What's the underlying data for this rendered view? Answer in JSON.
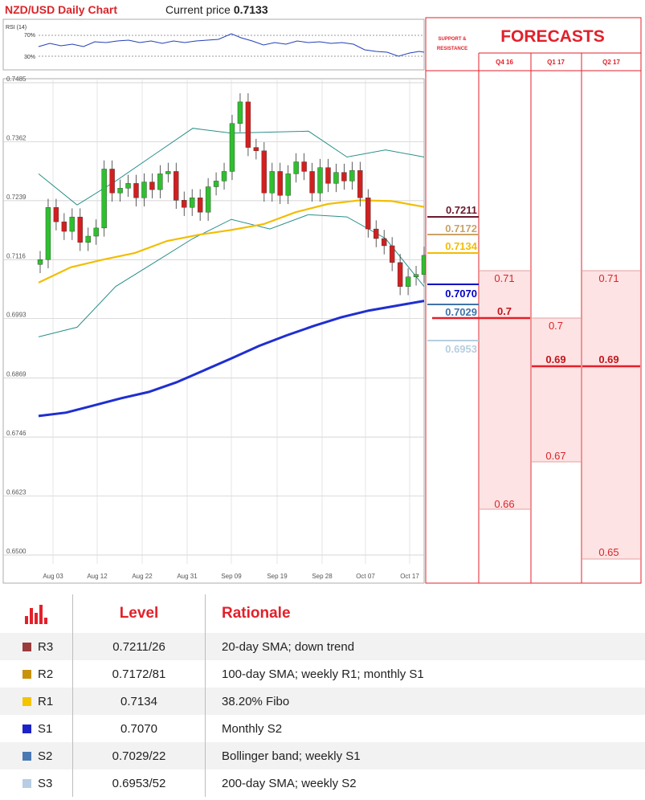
{
  "header": {
    "chart_title": "NZD/USD Daily Chart",
    "price_label": "Current price",
    "price_value": "0.7133"
  },
  "rsi_panel": {
    "label": "RSI (14)",
    "upper": "70%",
    "lower": "30%"
  },
  "forecasts": {
    "title": "FORECASTS",
    "sr_header": "SUPPORT & RESISTANCE",
    "quarters": [
      "Q4 16",
      "Q1 17",
      "Q2 17"
    ],
    "sr_levels": [
      {
        "value": "0.7211",
        "color": "#6b1b2e"
      },
      {
        "value": "0.7172",
        "color": "#c9a36a"
      },
      {
        "value": "0.7134",
        "color": "#f2bd00"
      },
      {
        "value": "0.7070",
        "color": "#0000c8"
      },
      {
        "value": "0.7029",
        "color": "#3f73a8"
      },
      {
        "value": "0.6953",
        "color": "#b6cee0"
      }
    ],
    "columns": [
      {
        "high": "0.71",
        "mid": "0.7",
        "low": "0.66"
      },
      {
        "high": "0.7",
        "mid": "0.69",
        "low": "0.67"
      },
      {
        "high": "0.71",
        "mid": "0.69",
        "low": "0.65"
      }
    ],
    "accent": "#e3202a",
    "band_fill": "#fde3e3"
  },
  "chart_data": {
    "type": "line",
    "title": "NZD/USD Daily Chart",
    "y_ticks": [
      "0.7485",
      "0.7362",
      "0.7239",
      "0.7116",
      "0.6993",
      "0.6869",
      "0.6746",
      "0.6623",
      "0.6500"
    ],
    "x_ticks": [
      "Aug 03",
      "Aug 12",
      "Aug 22",
      "Aug 31",
      "Sep 09",
      "Sep 19",
      "Sep 28",
      "Oct 07",
      "Oct 17"
    ],
    "ylim": [
      0.65,
      0.7485
    ],
    "current_price": 0.7133,
    "candles_close": [
      0.7116,
      0.7225,
      0.7195,
      0.7175,
      0.7205,
      0.7152,
      0.7165,
      0.7182,
      0.7305,
      0.7255,
      0.7265,
      0.7275,
      0.7245,
      0.7278,
      0.7262,
      0.7295,
      0.73,
      0.724,
      0.7225,
      0.7245,
      0.7215,
      0.7268,
      0.728,
      0.73,
      0.74,
      0.7445,
      0.735,
      0.7343,
      0.7255,
      0.73,
      0.725,
      0.7295,
      0.732,
      0.73,
      0.7255,
      0.7308,
      0.7275,
      0.7298,
      0.728,
      0.7302,
      0.7245,
      0.718,
      0.716,
      0.7145,
      0.711,
      0.706,
      0.708,
      0.7085,
      0.7125
    ],
    "series": [
      {
        "name": "SMA 200",
        "color": "#1f2fd0",
        "values": [
          0.679,
          0.6797,
          0.6812,
          0.6827,
          0.684,
          0.686,
          0.6885,
          0.691,
          0.6936,
          0.6958,
          0.6978,
          0.6996,
          0.701,
          0.702,
          0.703
        ]
      },
      {
        "name": "SMA 100",
        "color": "#f2bd00",
        "values": [
          0.7068,
          0.71,
          0.7116,
          0.713,
          0.7155,
          0.7168,
          0.7178,
          0.719,
          0.7215,
          0.7232,
          0.724,
          0.7238,
          0.7226
        ]
      },
      {
        "name": "Bollinger upper",
        "color": "#2a8f8a",
        "values": [
          0.7295,
          0.723,
          0.728,
          0.7335,
          0.739,
          0.738,
          0.7382,
          0.7384,
          0.733,
          0.7345,
          0.733
        ]
      },
      {
        "name": "Bollinger lower",
        "color": "#2a8f8a",
        "values": [
          0.6955,
          0.6975,
          0.706,
          0.711,
          0.716,
          0.72,
          0.718,
          0.721,
          0.7205,
          0.716,
          0.706
        ]
      }
    ]
  },
  "levels_table": {
    "headers": [
      "",
      "Level",
      "Rationale"
    ],
    "rows": [
      {
        "code": "R3",
        "color": "#9b3b3b",
        "level": "0.7211/26",
        "rationale": "20-day SMA; down trend"
      },
      {
        "code": "R2",
        "color": "#c9930c",
        "level": "0.7172/81",
        "rationale": "100-day SMA; weekly R1; monthly S1"
      },
      {
        "code": "R1",
        "color": "#f5c400",
        "level": "0.7134",
        "rationale": "38.20% Fibo"
      },
      {
        "code": "S1",
        "color": "#1d22c8",
        "level": "0.7070",
        "rationale": "Monthly S2"
      },
      {
        "code": "S2",
        "color": "#4a79b3",
        "level": "0.7029/22",
        "rationale": "Bollinger band; weekly S1"
      },
      {
        "code": "S3",
        "color": "#b8cde4",
        "level": "0.6953/52",
        "rationale": "200-day SMA; weekly S2"
      }
    ]
  }
}
